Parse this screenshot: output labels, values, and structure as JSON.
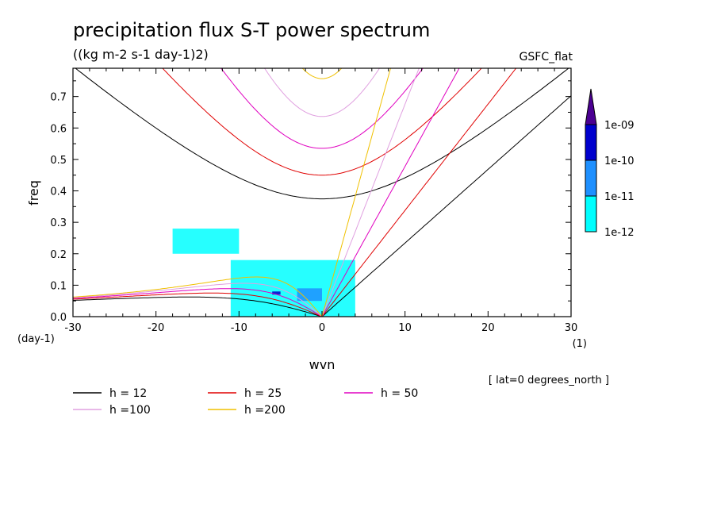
{
  "chart_data": {
    "type": "line",
    "title": "precipitation flux S-T power spectrum",
    "subtitle": "((kg m-2 s-1 day-1)2)",
    "source_label": "GSFC_flat",
    "xlabel": "wvn",
    "ylabel": "freq",
    "x_unit": "(1)",
    "y_unit": "(day-1)",
    "xlim": [
      -30,
      30
    ],
    "ylim": [
      0,
      0.79
    ],
    "x_ticks": [
      -30,
      -20,
      -10,
      0,
      10,
      20,
      30
    ],
    "y_ticks": [
      0.0,
      0.1,
      0.2,
      0.3,
      0.4,
      0.5,
      0.6,
      0.7
    ],
    "x_tick_labels": [
      "-30",
      "-20",
      "-10",
      "0",
      "10",
      "20",
      "30"
    ],
    "y_tick_labels": [
      "0.0",
      "0.1",
      "0.2",
      "0.3",
      "0.4",
      "0.5",
      "0.6",
      "0.7"
    ],
    "annotation": "[ lat=0 degrees_north ]",
    "grid": false,
    "legend_placement": "bottom-left",
    "series": [
      {
        "name": "h = 12",
        "h": 12,
        "color": "#000000"
      },
      {
        "name": "h = 25",
        "h": 25,
        "color": "#e00000"
      },
      {
        "name": "h = 50",
        "h": 50,
        "color": "#e000c0"
      },
      {
        "name": "h =100",
        "h": 100,
        "color": "#e0a0e0"
      },
      {
        "name": "h =200",
        "h": 200,
        "color": "#f0c000"
      }
    ],
    "colorbar": {
      "labels": [
        "1e-12",
        "1e-11",
        "1e-10",
        "1e-09"
      ],
      "colors": [
        "#00ffff",
        "#1e90ff",
        "#0000cd",
        "#4b0092"
      ]
    },
    "contour_regions": [
      {
        "level": 0,
        "x": [
          -18,
          -10
        ],
        "y": [
          0.2,
          0.28
        ]
      },
      {
        "level": 0,
        "x": [
          -11,
          4
        ],
        "y": [
          0.0,
          0.18
        ]
      },
      {
        "level": 1,
        "x": [
          -3,
          0
        ],
        "y": [
          0.05,
          0.09
        ]
      },
      {
        "level": 2,
        "x": [
          -6,
          -5
        ],
        "y": [
          0.07,
          0.08
        ]
      }
    ]
  }
}
